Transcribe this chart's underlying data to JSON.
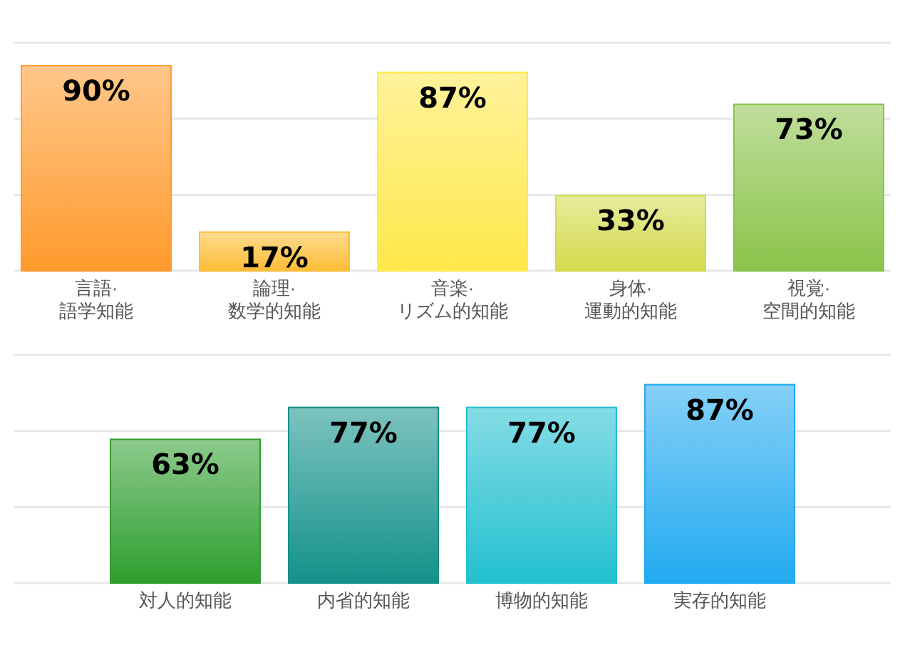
{
  "chart_data": [
    {
      "type": "bar",
      "categories": [
        "言語·\n語学知能",
        "論理·\n数学的知能",
        "音楽·\nリズム的知能",
        "身体·\n運動的知能",
        "視覚·\n空間的知能"
      ],
      "values": [
        90,
        17,
        87,
        33,
        73
      ],
      "value_labels": [
        "90%",
        "17%",
        "87%",
        "33%",
        "73%"
      ],
      "colors": [
        "#ff9a2c",
        "#fdbd35",
        "#ffe84a",
        "#d4da4c",
        "#8bc34a"
      ],
      "ylim": [
        0,
        100
      ],
      "yticks": [
        {
          "value": 0,
          "label": null
        },
        {
          "value": 33.3,
          "label": null
        },
        {
          "value": 66.7,
          "label": null
        },
        {
          "value": 100,
          "label": null
        }
      ],
      "grid": "y",
      "tick_labels": "x"
    },
    {
      "type": "bar",
      "categories": [
        "対人的知能",
        "内省的知能",
        "博物的知能",
        "実存的知能"
      ],
      "values": [
        63,
        77,
        77,
        87
      ],
      "value_labels": [
        "63%",
        "77%",
        "77%",
        "87%"
      ],
      "colors": [
        "#2e9e2e",
        "#13918a",
        "#22c0d0",
        "#22aaf0"
      ],
      "ylim": [
        0,
        100
      ],
      "yticks": [
        {
          "value": 0,
          "label": null
        },
        {
          "value": 33.3,
          "label": null
        },
        {
          "value": 66.7,
          "label": null
        },
        {
          "value": 100,
          "label": null
        }
      ],
      "grid": "y",
      "tick_labels": "x"
    }
  ]
}
